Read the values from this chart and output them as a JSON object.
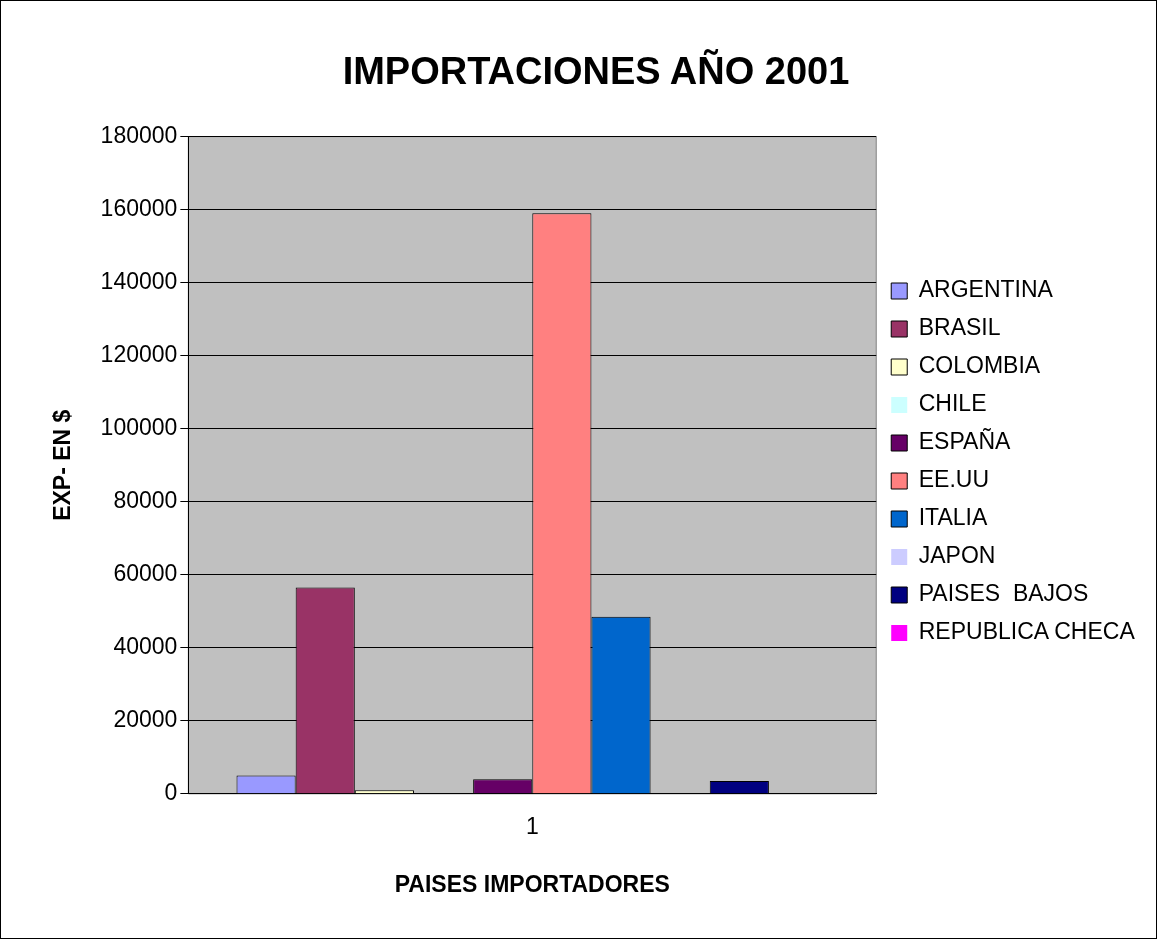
{
  "chart_data": {
    "type": "bar",
    "title": "IMPORTACIONES AÑO 2001",
    "xlabel": "PAISES IMPORTADORES",
    "ylabel": "EXP- EN $",
    "categories": [
      "1"
    ],
    "series": [
      {
        "name": "ARGENTINA",
        "color": "#9999ff",
        "values": [
          5000
        ]
      },
      {
        "name": "BRASIL",
        "color": "#993366",
        "values": [
          56500
        ]
      },
      {
        "name": "COLOMBIA",
        "color": "#ffffcc",
        "values": [
          1000
        ]
      },
      {
        "name": "CHILE",
        "color": "#ccffff",
        "values": [
          0
        ]
      },
      {
        "name": "ESPAÑA",
        "color": "#660066",
        "values": [
          4000
        ]
      },
      {
        "name": "EE.UU",
        "color": "#ff8080",
        "values": [
          159000
        ]
      },
      {
        "name": "ITALIA",
        "color": "#0066cc",
        "values": [
          48500
        ]
      },
      {
        "name": "JAPON",
        "color": "#ccccff",
        "values": [
          0
        ]
      },
      {
        "name": "PAISES  BAJOS",
        "color": "#000080",
        "values": [
          3500
        ]
      },
      {
        "name": "REPUBLICA CHECA",
        "color": "#ff00ff",
        "values": [
          0
        ]
      }
    ],
    "ylim": [
      0,
      180000
    ],
    "yticks": [
      0,
      20000,
      40000,
      60000,
      80000,
      100000,
      120000,
      140000,
      160000,
      180000
    ],
    "grid": "y",
    "legend": "right"
  }
}
